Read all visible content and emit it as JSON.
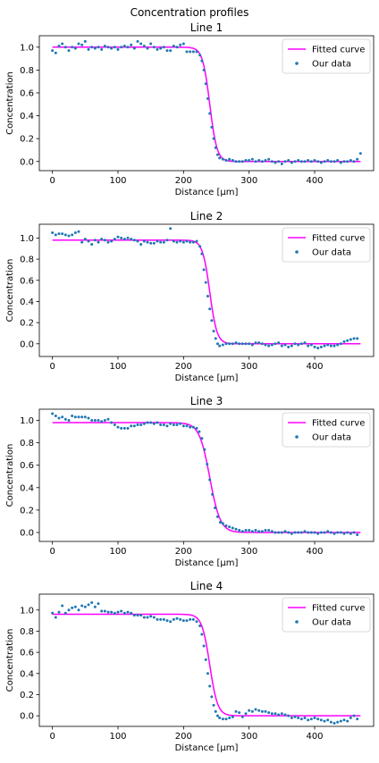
{
  "figure": {
    "suptitle": "Concentration profiles"
  },
  "chart_data": [
    {
      "type": "scatter",
      "title": "Line 1",
      "xlabel": "Distance [µm]",
      "ylabel": "Concentration",
      "xlim": [
        -20,
        490
      ],
      "ylim": [
        -0.08,
        1.1
      ],
      "xticks": [
        0,
        100,
        200,
        300,
        400
      ],
      "xtick_labels": [
        "0",
        "100",
        "200",
        "300",
        "400"
      ],
      "yticks": [
        0.0,
        0.2,
        0.4,
        0.6,
        0.8,
        1.0
      ],
      "ytick_labels": [
        "0.0",
        "0.2",
        "0.4",
        "0.6",
        "0.8",
        "1.0"
      ],
      "grid": false,
      "legend_position": "top-right",
      "fit": {
        "name": "Fitted curve",
        "color": "#ff00ff",
        "plateau_high": 1.0,
        "plateau_low": 0.0,
        "center": 240,
        "width": 5.5,
        "x_range": [
          0,
          470
        ]
      },
      "data": {
        "name": "Our data",
        "color": "#1f77b4",
        "x": [
          0,
          5,
          10,
          15,
          20,
          25,
          30,
          35,
          40,
          45,
          50,
          55,
          60,
          65,
          70,
          75,
          80,
          85,
          90,
          95,
          100,
          105,
          110,
          115,
          120,
          125,
          130,
          135,
          140,
          145,
          150,
          155,
          160,
          165,
          170,
          175,
          180,
          185,
          190,
          195,
          200,
          205,
          210,
          215,
          220,
          225,
          228,
          231,
          234,
          237,
          240,
          243,
          246,
          249,
          252,
          255,
          260,
          265,
          270,
          275,
          280,
          285,
          290,
          295,
          300,
          305,
          310,
          315,
          320,
          325,
          330,
          335,
          340,
          345,
          350,
          355,
          360,
          365,
          370,
          375,
          380,
          385,
          390,
          395,
          400,
          405,
          410,
          415,
          420,
          425,
          430,
          435,
          440,
          445,
          450,
          455,
          460,
          465,
          470
        ],
        "y": [
          0.97,
          0.95,
          1.01,
          1.03,
          1.0,
          0.97,
          1.0,
          0.99,
          1.03,
          1.02,
          1.05,
          0.98,
          1.0,
          0.99,
          1.0,
          0.98,
          1.01,
          1.0,
          0.99,
          1.0,
          0.98,
          1.0,
          1.01,
          1.0,
          1.02,
          0.99,
          1.05,
          1.03,
          1.01,
          0.99,
          1.03,
          1.0,
          0.98,
          0.99,
          1.0,
          0.97,
          0.97,
          1.01,
          1.0,
          1.02,
          1.03,
          0.96,
          0.96,
          0.96,
          0.96,
          0.93,
          0.88,
          0.8,
          0.68,
          0.55,
          0.42,
          0.3,
          0.2,
          0.12,
          0.06,
          0.03,
          0.02,
          0.01,
          0.02,
          0.01,
          0.0,
          0.0,
          0.0,
          0.01,
          0.01,
          0.02,
          0.0,
          0.01,
          0.0,
          0.01,
          0.02,
          0.0,
          -0.01,
          0.0,
          -0.02,
          0.0,
          0.01,
          -0.01,
          0.0,
          0.01,
          0.0,
          0.0,
          0.01,
          0.0,
          0.01,
          0.0,
          -0.01,
          0.0,
          0.01,
          0.0,
          0.0,
          0.01,
          -0.01,
          0.0,
          0.0,
          0.01,
          0.0,
          0.02,
          0.07
        ]
      }
    },
    {
      "type": "scatter",
      "title": "Line 2",
      "xlabel": "Distance [µm]",
      "ylabel": "Concentration",
      "xlim": [
        -20,
        490
      ],
      "ylim": [
        -0.12,
        1.13
      ],
      "xticks": [
        0,
        100,
        200,
        300,
        400
      ],
      "xtick_labels": [
        "0",
        "100",
        "200",
        "300",
        "400"
      ],
      "yticks": [
        0.0,
        0.2,
        0.4,
        0.6,
        0.8,
        1.0
      ],
      "ytick_labels": [
        "0.0",
        "0.2",
        "0.4",
        "0.6",
        "0.8",
        "1.0"
      ],
      "grid": false,
      "legend_position": "top-right",
      "fit": {
        "name": "Fitted curve",
        "color": "#ff00ff",
        "plateau_high": 0.98,
        "plateau_low": 0.0,
        "center": 240,
        "width": 5.5,
        "x_range": [
          0,
          470
        ]
      },
      "data": {
        "name": "Our data",
        "color": "#1f77b4",
        "x": [
          0,
          5,
          10,
          15,
          20,
          25,
          30,
          35,
          40,
          45,
          50,
          55,
          60,
          65,
          70,
          75,
          80,
          85,
          90,
          95,
          100,
          105,
          110,
          115,
          120,
          125,
          130,
          135,
          140,
          145,
          150,
          155,
          160,
          165,
          170,
          175,
          180,
          185,
          190,
          195,
          200,
          205,
          210,
          215,
          220,
          225,
          228,
          231,
          234,
          237,
          240,
          243,
          246,
          249,
          252,
          255,
          260,
          265,
          270,
          275,
          280,
          285,
          290,
          295,
          300,
          305,
          310,
          315,
          320,
          325,
          330,
          335,
          340,
          345,
          350,
          355,
          360,
          365,
          370,
          375,
          380,
          385,
          390,
          395,
          400,
          405,
          410,
          415,
          420,
          425,
          430,
          435,
          440,
          445,
          450,
          455,
          460,
          465
        ],
        "y": [
          1.05,
          1.03,
          1.04,
          1.04,
          1.03,
          1.02,
          1.03,
          1.05,
          1.06,
          0.96,
          0.99,
          0.97,
          0.94,
          0.98,
          0.96,
          0.99,
          0.98,
          0.96,
          0.97,
          0.99,
          1.01,
          1.0,
          0.99,
          1.0,
          0.99,
          0.98,
          0.97,
          0.94,
          0.97,
          0.96,
          0.95,
          0.95,
          0.97,
          0.96,
          0.96,
          0.98,
          1.09,
          0.97,
          0.96,
          0.97,
          0.96,
          0.97,
          0.96,
          0.96,
          0.97,
          0.92,
          0.85,
          0.7,
          0.58,
          0.45,
          0.33,
          0.22,
          0.12,
          0.05,
          0.0,
          -0.02,
          -0.01,
          0.0,
          0.0,
          0.0,
          0.01,
          0.0,
          0.0,
          0.0,
          0.0,
          -0.01,
          0.01,
          0.01,
          0.0,
          -0.01,
          -0.02,
          -0.01,
          0.0,
          0.01,
          -0.02,
          -0.01,
          -0.03,
          -0.02,
          0.0,
          -0.01,
          0.0,
          0.01,
          -0.02,
          -0.01,
          -0.03,
          -0.04,
          -0.03,
          -0.02,
          -0.01,
          -0.02,
          -0.02,
          -0.01,
          0.0,
          0.02,
          0.03,
          0.04,
          0.05,
          0.05
        ]
      }
    },
    {
      "type": "scatter",
      "title": "Line 3",
      "xlabel": "Distance [µm]",
      "ylabel": "Concentration",
      "xlim": [
        -20,
        490
      ],
      "ylim": [
        -0.08,
        1.1
      ],
      "xticks": [
        0,
        100,
        200,
        300,
        400
      ],
      "xtick_labels": [
        "0",
        "100",
        "200",
        "300",
        "400"
      ],
      "yticks": [
        0.0,
        0.2,
        0.4,
        0.6,
        0.8,
        1.0
      ],
      "ytick_labels": [
        "0.0",
        "0.2",
        "0.4",
        "0.6",
        "0.8",
        "1.0"
      ],
      "grid": false,
      "legend_position": "top-right",
      "fit": {
        "name": "Fitted curve",
        "color": "#ff00ff",
        "plateau_high": 0.98,
        "plateau_low": 0.0,
        "center": 240,
        "width": 8,
        "x_range": [
          0,
          470
        ]
      },
      "data": {
        "name": "Our data",
        "color": "#1f77b4",
        "x": [
          0,
          5,
          10,
          15,
          20,
          25,
          30,
          35,
          40,
          45,
          50,
          55,
          60,
          65,
          70,
          75,
          80,
          85,
          90,
          95,
          100,
          105,
          110,
          115,
          120,
          125,
          130,
          135,
          140,
          145,
          150,
          155,
          160,
          165,
          170,
          175,
          180,
          185,
          190,
          195,
          200,
          205,
          210,
          215,
          220,
          224,
          228,
          232,
          236,
          240,
          244,
          248,
          252,
          256,
          260,
          265,
          270,
          275,
          280,
          285,
          290,
          295,
          300,
          305,
          310,
          315,
          320,
          325,
          330,
          335,
          340,
          345,
          350,
          355,
          360,
          365,
          370,
          375,
          380,
          385,
          390,
          395,
          400,
          405,
          410,
          415,
          420,
          425,
          430,
          435,
          440,
          445,
          450,
          455,
          460,
          465
        ],
        "y": [
          1.06,
          1.04,
          1.02,
          1.03,
          1.01,
          1.0,
          1.04,
          1.03,
          1.03,
          1.03,
          1.03,
          1.02,
          1.0,
          1.0,
          1.0,
          0.99,
          1.0,
          1.01,
          0.98,
          0.96,
          0.94,
          0.93,
          0.93,
          0.93,
          0.95,
          0.95,
          0.96,
          0.96,
          0.97,
          0.98,
          0.98,
          0.97,
          0.98,
          0.96,
          0.96,
          0.95,
          0.97,
          0.96,
          0.96,
          0.97,
          0.95,
          0.95,
          0.94,
          0.94,
          0.93,
          0.9,
          0.84,
          0.74,
          0.61,
          0.47,
          0.34,
          0.22,
          0.14,
          0.09,
          0.08,
          0.06,
          0.05,
          0.04,
          0.03,
          0.02,
          0.01,
          0.02,
          0.02,
          0.01,
          0.02,
          0.01,
          0.01,
          0.02,
          0.02,
          0.01,
          0.0,
          0.0,
          0.0,
          0.01,
          0.0,
          -0.01,
          0.0,
          0.0,
          0.0,
          0.01,
          0.0,
          0.0,
          0.0,
          -0.01,
          0.0,
          0.0,
          0.01,
          0.0,
          -0.01,
          0.0,
          0.0,
          -0.01,
          0.0,
          -0.01,
          0.0,
          -0.02
        ]
      }
    },
    {
      "type": "scatter",
      "title": "Line 4",
      "xlabel": "Distance [µm]",
      "ylabel": "Concentration",
      "xlim": [
        -20,
        490
      ],
      "ylim": [
        -0.1,
        1.15
      ],
      "xticks": [
        0,
        100,
        200,
        300,
        400
      ],
      "xtick_labels": [
        "0",
        "100",
        "200",
        "300",
        "400"
      ],
      "yticks": [
        0.0,
        0.2,
        0.4,
        0.6,
        0.8,
        1.0
      ],
      "ytick_labels": [
        "0.0",
        "0.2",
        "0.4",
        "0.6",
        "0.8",
        "1.0"
      ],
      "grid": false,
      "legend_position": "top-right",
      "fit": {
        "name": "Fitted curve",
        "color": "#ff00ff",
        "plateau_high": 0.96,
        "plateau_low": 0.0,
        "center": 240,
        "width": 6,
        "x_range": [
          0,
          470
        ]
      },
      "data": {
        "name": "Our data",
        "color": "#1f77b4",
        "x": [
          0,
          5,
          10,
          15,
          20,
          25,
          30,
          35,
          40,
          45,
          50,
          55,
          60,
          65,
          70,
          75,
          80,
          85,
          90,
          95,
          100,
          105,
          110,
          115,
          120,
          125,
          130,
          135,
          140,
          145,
          150,
          155,
          160,
          165,
          170,
          175,
          180,
          185,
          190,
          195,
          200,
          205,
          210,
          215,
          220,
          225,
          228,
          231,
          234,
          237,
          240,
          243,
          246,
          249,
          252,
          255,
          260,
          265,
          270,
          275,
          280,
          285,
          290,
          295,
          300,
          305,
          310,
          315,
          320,
          325,
          330,
          335,
          340,
          345,
          350,
          355,
          360,
          365,
          370,
          375,
          380,
          385,
          390,
          395,
          400,
          405,
          410,
          415,
          420,
          425,
          430,
          435,
          440,
          445,
          450,
          455,
          460,
          465
        ],
        "y": [
          0.97,
          0.93,
          0.98,
          1.04,
          0.97,
          1.0,
          1.02,
          1.03,
          1.0,
          1.04,
          1.03,
          1.05,
          1.07,
          1.03,
          1.06,
          0.99,
          0.99,
          0.98,
          0.98,
          0.97,
          0.98,
          0.99,
          0.97,
          0.98,
          0.97,
          0.95,
          0.95,
          0.95,
          0.93,
          0.93,
          0.94,
          0.93,
          0.91,
          0.91,
          0.91,
          0.9,
          0.89,
          0.91,
          0.92,
          0.91,
          0.9,
          0.9,
          0.91,
          0.91,
          0.89,
          0.85,
          0.77,
          0.66,
          0.53,
          0.4,
          0.28,
          0.18,
          0.1,
          0.04,
          0.0,
          -0.02,
          -0.03,
          -0.03,
          -0.02,
          -0.01,
          0.04,
          0.03,
          -0.01,
          0.02,
          0.05,
          0.04,
          0.06,
          0.05,
          0.04,
          0.04,
          0.03,
          0.02,
          0.02,
          0.01,
          0.02,
          0.01,
          0.0,
          -0.02,
          -0.01,
          -0.02,
          -0.03,
          -0.02,
          -0.04,
          -0.03,
          -0.02,
          -0.03,
          -0.04,
          -0.05,
          -0.04,
          -0.06,
          -0.07,
          -0.06,
          -0.05,
          -0.04,
          -0.05,
          -0.02,
          0.0,
          -0.03
        ]
      }
    }
  ]
}
